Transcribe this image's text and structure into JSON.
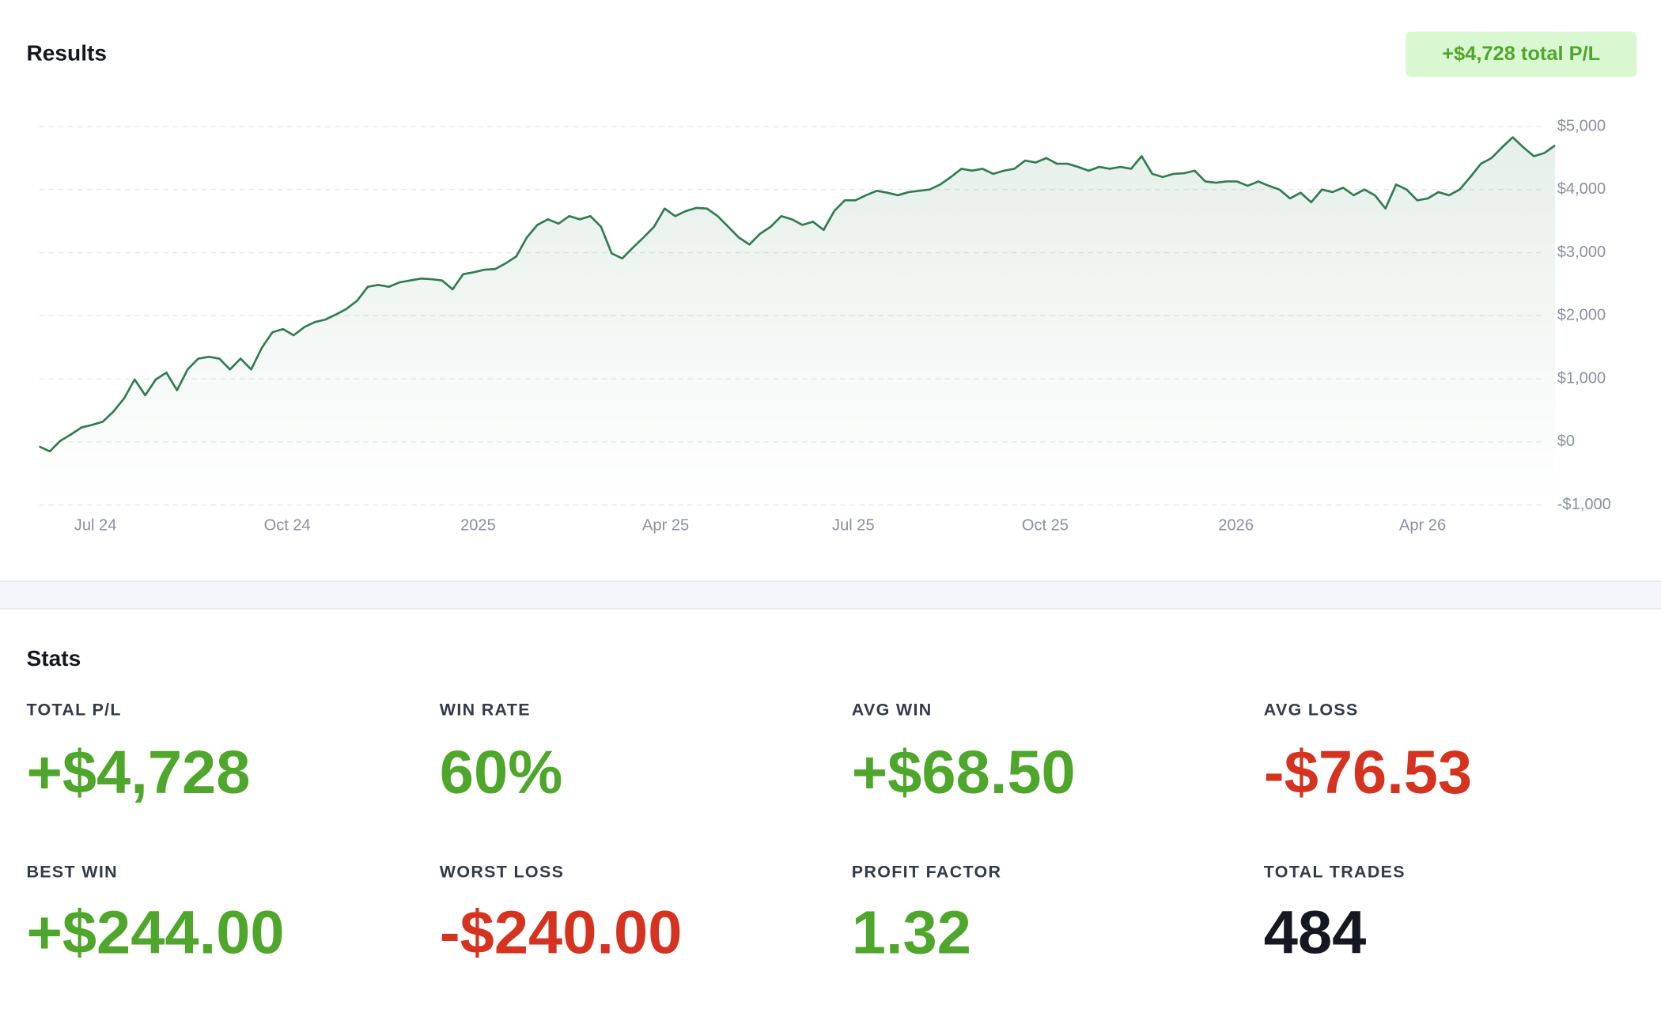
{
  "header": {
    "title": "Results",
    "badge": "+$4,728 total P/L"
  },
  "chart_data": {
    "type": "line",
    "series": [
      {
        "name": "P/L",
        "color": "#2f7d4f",
        "values": [
          -70,
          -150,
          20,
          120,
          230,
          270,
          320,
          480,
          690,
          990,
          740,
          990,
          1100,
          820,
          1150,
          1320,
          1350,
          1320,
          1150,
          1320,
          1150,
          1490,
          1740,
          1790,
          1690,
          1820,
          1900,
          1940,
          2020,
          2110,
          2240,
          2460,
          2490,
          2460,
          2530,
          2560,
          2590,
          2580,
          2560,
          2420,
          2660,
          2690,
          2730,
          2740,
          2830,
          2940,
          3240,
          3440,
          3530,
          3460,
          3580,
          3530,
          3580,
          3410,
          2990,
          2910,
          3080,
          3240,
          3410,
          3700,
          3580,
          3660,
          3710,
          3700,
          3580,
          3410,
          3240,
          3130,
          3300,
          3410,
          3580,
          3530,
          3440,
          3490,
          3360,
          3660,
          3830,
          3830,
          3910,
          3980,
          3950,
          3910,
          3960,
          3980,
          4000,
          4080,
          4200,
          4330,
          4300,
          4330,
          4250,
          4300,
          4330,
          4460,
          4430,
          4500,
          4410,
          4410,
          4360,
          4300,
          4360,
          4330,
          4360,
          4330,
          4530,
          4250,
          4200,
          4250,
          4260,
          4300,
          4130,
          4110,
          4130,
          4130,
          4060,
          4130,
          4060,
          4000,
          3860,
          3950,
          3800,
          4000,
          3960,
          4030,
          3910,
          4000,
          3910,
          3700,
          4080,
          4000,
          3830,
          3860,
          3960,
          3910,
          4000,
          4200,
          4410,
          4500,
          4670,
          4830,
          4670,
          4530,
          4580,
          4700
        ]
      }
    ],
    "xlim": [
      0,
      142
    ],
    "xticks": [
      {
        "value": 5.3,
        "label": "Jul 24"
      },
      {
        "value": 23.4,
        "label": "Oct 24"
      },
      {
        "value": 41.4,
        "label": "2025"
      },
      {
        "value": 59.1,
        "label": "Apr 25"
      },
      {
        "value": 76.8,
        "label": "Jul 25"
      },
      {
        "value": 94.9,
        "label": "Oct 25"
      },
      {
        "value": 112.9,
        "label": "2026"
      },
      {
        "value": 130.5,
        "label": "Apr 26"
      }
    ],
    "ylim": [
      -1000,
      5000
    ],
    "yticks": [
      {
        "value": -1000,
        "label": "-$1,000"
      },
      {
        "value": 0,
        "label": "$0"
      },
      {
        "value": 1000,
        "label": "$1,000"
      },
      {
        "value": 2000,
        "label": "$2,000"
      },
      {
        "value": 3000,
        "label": "$3,000"
      },
      {
        "value": 4000,
        "label": "$4,000"
      },
      {
        "value": 5000,
        "label": "$5,000"
      }
    ],
    "grid": true
  },
  "stats": {
    "title": "Stats",
    "items": [
      {
        "label": "TOTAL P/L",
        "value": "+$4,728",
        "color": "#4ea62b"
      },
      {
        "label": "WIN RATE",
        "value": "60%",
        "color": "#4ea62b"
      },
      {
        "label": "AVG WIN",
        "value": "+$68.50",
        "color": "#4ea62b"
      },
      {
        "label": "AVG LOSS",
        "value": "-$76.53",
        "color": "#d5321f"
      },
      {
        "label": "BEST WIN",
        "value": "+$244.00",
        "color": "#4ea62b"
      },
      {
        "label": "WORST LOSS",
        "value": "-$240.00",
        "color": "#d5321f"
      },
      {
        "label": "PROFIT FACTOR",
        "value": "1.32",
        "color": "#4ea62b"
      },
      {
        "label": "TOTAL TRADES",
        "value": "484",
        "color": "#151821"
      }
    ]
  }
}
